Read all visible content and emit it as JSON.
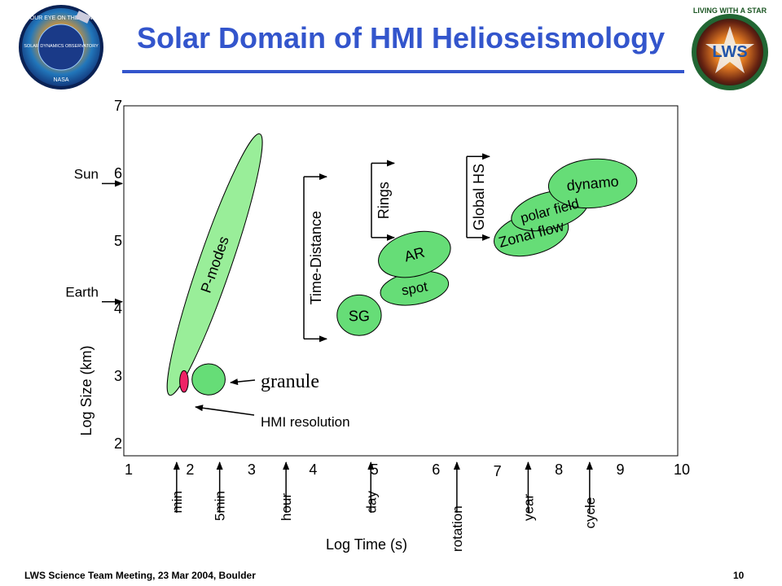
{
  "slide": {
    "title": "Solar Domain of HMI Helioseismology",
    "footer_left": "LWS Science Team Meeting, 23 Mar 2004, Boulder",
    "page_number": "10",
    "logos": {
      "left": {
        "name": "solar-dynamics-observatory-logo",
        "text": [
          "OUR EYE ON THE SUN",
          "SOLAR DYNAMICS OBSERVATORY",
          "NASA"
        ]
      },
      "right": {
        "name": "living-with-a-star-logo",
        "text": [
          "LIVING WITH A STAR",
          "LWS"
        ]
      }
    }
  },
  "chart_data": {
    "type": "scatter",
    "xlabel": "Log Time (s)",
    "ylabel": "Log Size (km)",
    "xlim": [
      1,
      10
    ],
    "ylim": [
      2,
      7
    ],
    "x_ticks": [
      "1",
      "2",
      "3",
      "4",
      "5",
      "6",
      "7",
      "8",
      "9",
      "10"
    ],
    "y_ticks": [
      "2",
      "3",
      "4",
      "5",
      "6",
      "7"
    ],
    "time_markers": [
      {
        "label": "min",
        "x": 1.78
      },
      {
        "label": "5min",
        "x": 2.48
      },
      {
        "label": "hour",
        "x": 3.56
      },
      {
        "label": "day",
        "x": 4.94
      },
      {
        "label": "rotation",
        "x": 6.34
      },
      {
        "label": "year",
        "x": 7.5
      },
      {
        "label": "cycle",
        "x": 8.5
      }
    ],
    "size_markers": [
      {
        "label": "Sun",
        "y": 5.85
      },
      {
        "label": "Earth",
        "y": 4.1
      }
    ],
    "regions": [
      {
        "label": "P-modes",
        "x": 2.4,
        "y": 4.65,
        "rx": 2.25,
        "ry": 0.24,
        "rotate": -71,
        "fill": "#99ee99"
      },
      {
        "label": "granule",
        "x": 2.3,
        "y": 2.95,
        "rx": 0.27,
        "ry": 0.23,
        "rotate": 0,
        "fill": "#66dd77"
      },
      {
        "label": "HMI resolution",
        "x": 1.9,
        "y": 2.92,
        "rx": 0.07,
        "ry": 0.16,
        "rotate": 0,
        "fill": "#ee2266"
      },
      {
        "label": "SG",
        "x": 4.75,
        "y": 3.9,
        "rx": 0.36,
        "ry": 0.3,
        "rotate": 0,
        "fill": "#66dd77"
      },
      {
        "label": "spot",
        "x": 5.65,
        "y": 4.3,
        "rx": 0.56,
        "ry": 0.24,
        "rotate": -10,
        "fill": "#66dd77"
      },
      {
        "label": "AR",
        "x": 5.65,
        "y": 4.8,
        "rx": 0.6,
        "ry": 0.32,
        "rotate": -15,
        "fill": "#66dd77"
      },
      {
        "label": "Zonal flow",
        "x": 7.55,
        "y": 5.1,
        "rx": 0.62,
        "ry": 0.3,
        "rotate": -15,
        "fill": "#66dd77"
      },
      {
        "label": "polar field",
        "x": 7.85,
        "y": 5.45,
        "rx": 0.64,
        "ry": 0.27,
        "rotate": -15,
        "fill": "#66dd77"
      },
      {
        "label": "dynamo",
        "x": 8.55,
        "y": 5.85,
        "rx": 0.72,
        "ry": 0.36,
        "rotate": -5,
        "fill": "#66dd77"
      }
    ],
    "method_ranges": [
      {
        "label": "Time-Distance",
        "x": 3.85,
        "y_min": 3.55,
        "y_max": 5.95
      },
      {
        "label": "Rings",
        "x": 4.95,
        "y_min": 5.05,
        "y_max": 6.15
      },
      {
        "label": "Global HS",
        "x": 6.5,
        "y_min": 5.05,
        "y_max": 6.25
      }
    ]
  }
}
